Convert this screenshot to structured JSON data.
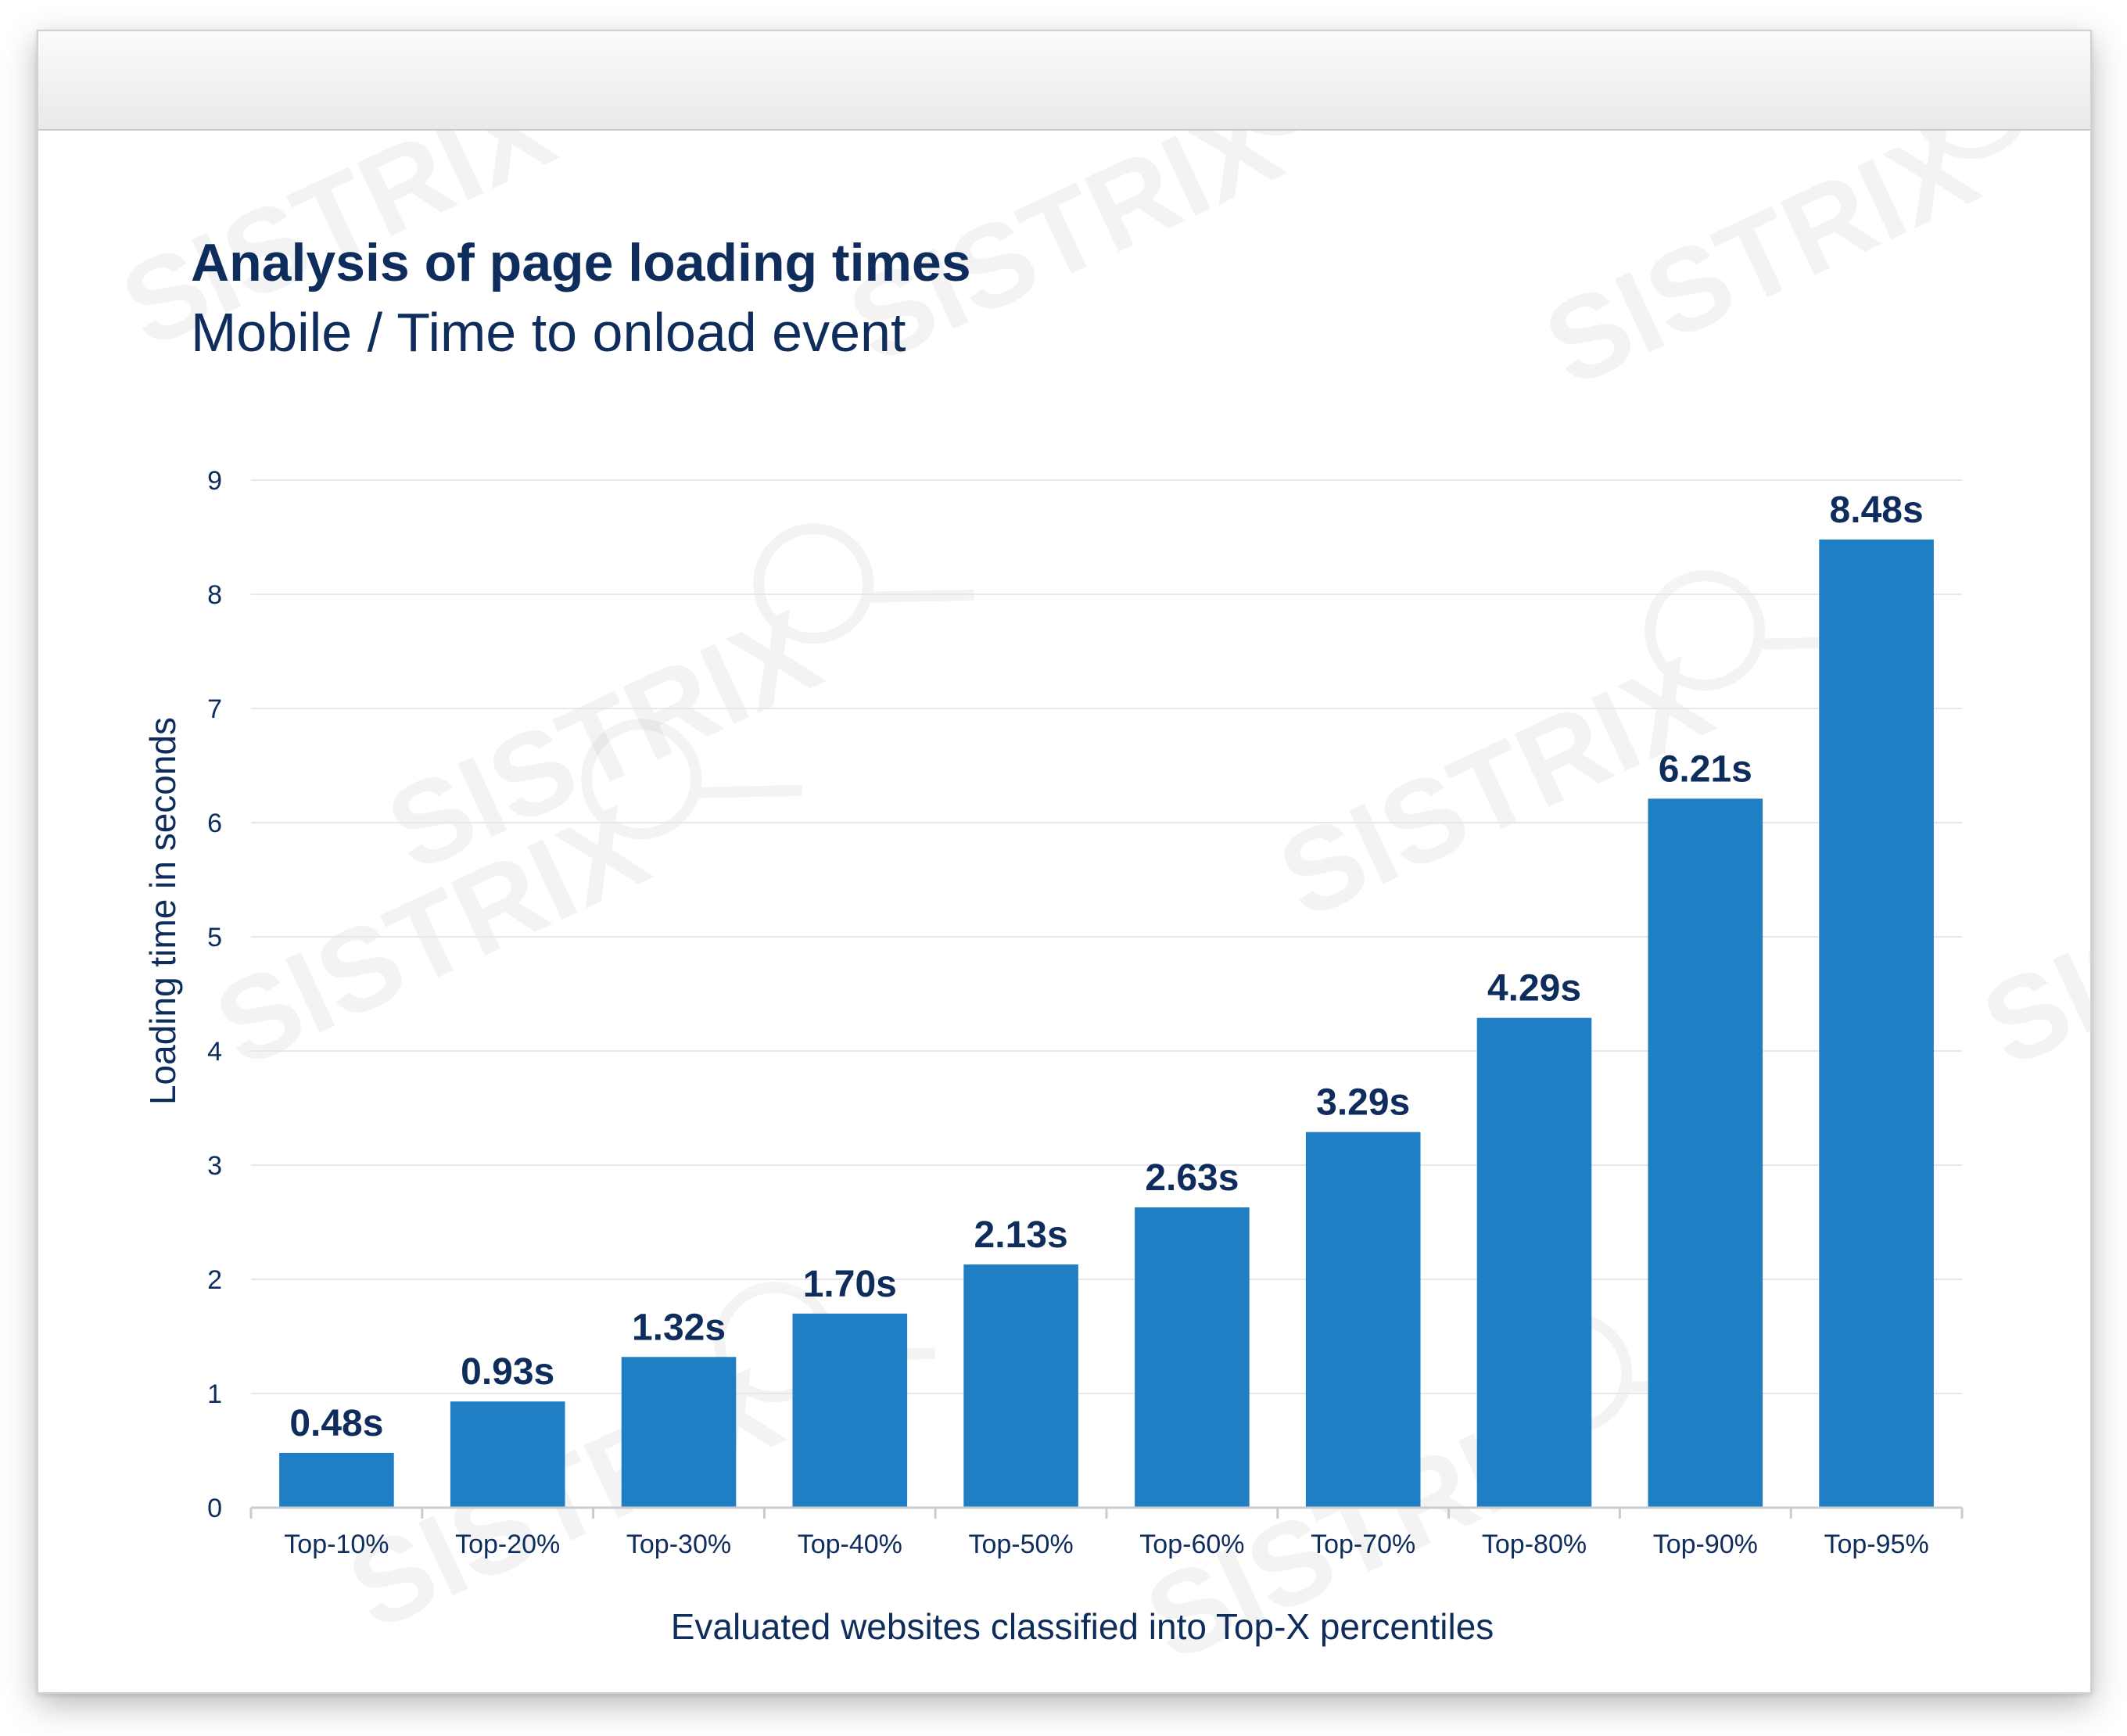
{
  "watermark_text": "SISTRIX",
  "chart_data": {
    "type": "bar",
    "title": "Analysis of page loading times",
    "subtitle": "Mobile / Time to onload event",
    "xlabel": "Evaluated websites classified into Top-X percentiles",
    "ylabel": "Loading time in seconds",
    "categories": [
      "Top-10%",
      "Top-20%",
      "Top-30%",
      "Top-40%",
      "Top-50%",
      "Top-60%",
      "Top-70%",
      "Top-80%",
      "Top-90%",
      "Top-95%"
    ],
    "values": [
      0.48,
      0.93,
      1.32,
      1.7,
      2.13,
      2.63,
      3.29,
      4.29,
      6.21,
      8.48
    ],
    "data_labels": [
      "0.48s",
      "0.93s",
      "1.32s",
      "1.70s",
      "2.13s",
      "2.63s",
      "3.29s",
      "4.29s",
      "6.21s",
      "8.48s"
    ],
    "ylim": [
      0,
      9
    ],
    "yticks": [
      "0",
      "1",
      "2",
      "3",
      "4",
      "5",
      "6",
      "7",
      "8",
      "9"
    ],
    "grid": true,
    "legend": "none",
    "bar_color": "#1f7ec4",
    "text_color": "#0e2d5c"
  }
}
